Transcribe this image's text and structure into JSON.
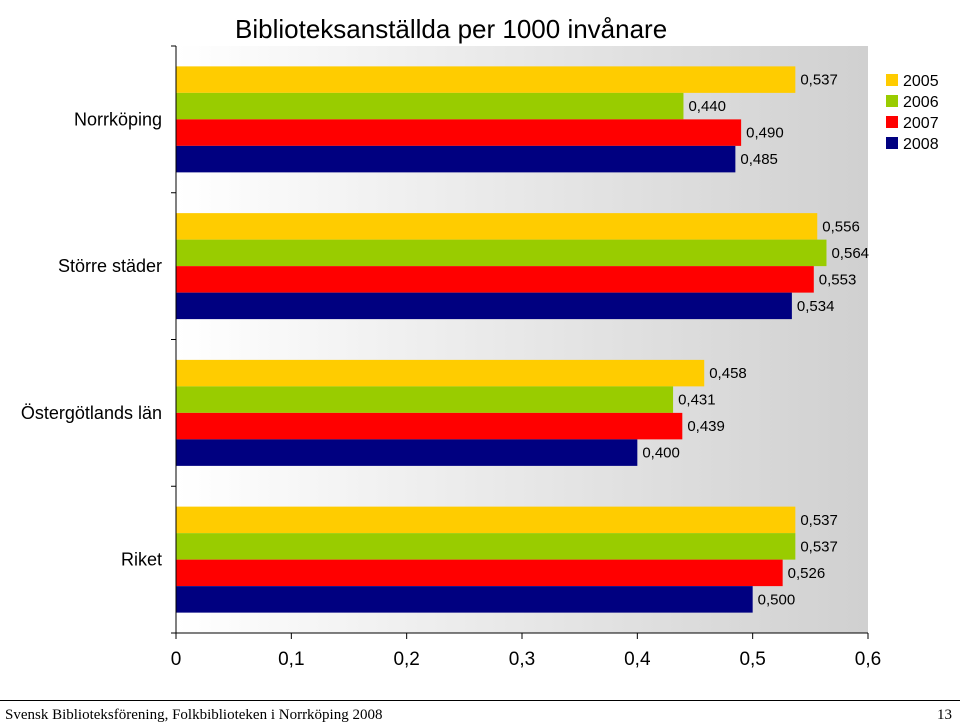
{
  "chart_data": {
    "type": "bar",
    "orientation": "horizontal",
    "title": "Biblioteksanställda per 1000 invånare",
    "categories": [
      "Norrköping",
      "Större städer",
      "Östergötlands län",
      "Riket"
    ],
    "series": [
      {
        "name": "2005",
        "color": "#FFCC00",
        "values": [
          0.537,
          0.556,
          0.458,
          0.537
        ],
        "labels": [
          "0,537",
          "0,556",
          "0,458",
          "0,537"
        ]
      },
      {
        "name": "2006",
        "color": "#99CC00",
        "values": [
          0.44,
          0.564,
          0.431,
          0.537
        ],
        "labels": [
          "0,440",
          "0,564",
          "0,431",
          "0,537"
        ]
      },
      {
        "name": "2007",
        "color": "#FF0000",
        "values": [
          0.49,
          0.553,
          0.439,
          0.526
        ],
        "labels": [
          "0,490",
          "0,553",
          "0,439",
          "0,526"
        ]
      },
      {
        "name": "2008",
        "color": "#000080",
        "values": [
          0.485,
          0.534,
          0.4,
          0.5
        ],
        "labels": [
          "0,485",
          "0,534",
          "0,400",
          "0,500"
        ]
      }
    ],
    "xlim": [
      0,
      0.6
    ],
    "xticks": [
      "0",
      "0,1",
      "0,2",
      "0,3",
      "0,4",
      "0,5",
      "0,6"
    ],
    "legend_position": "top-right",
    "plot_background": "gradient-white-to-grey"
  },
  "footer": {
    "source": "Svensk Biblioteksförening, Folkbiblioteken i Norrköping 2008",
    "page_number": "13"
  }
}
